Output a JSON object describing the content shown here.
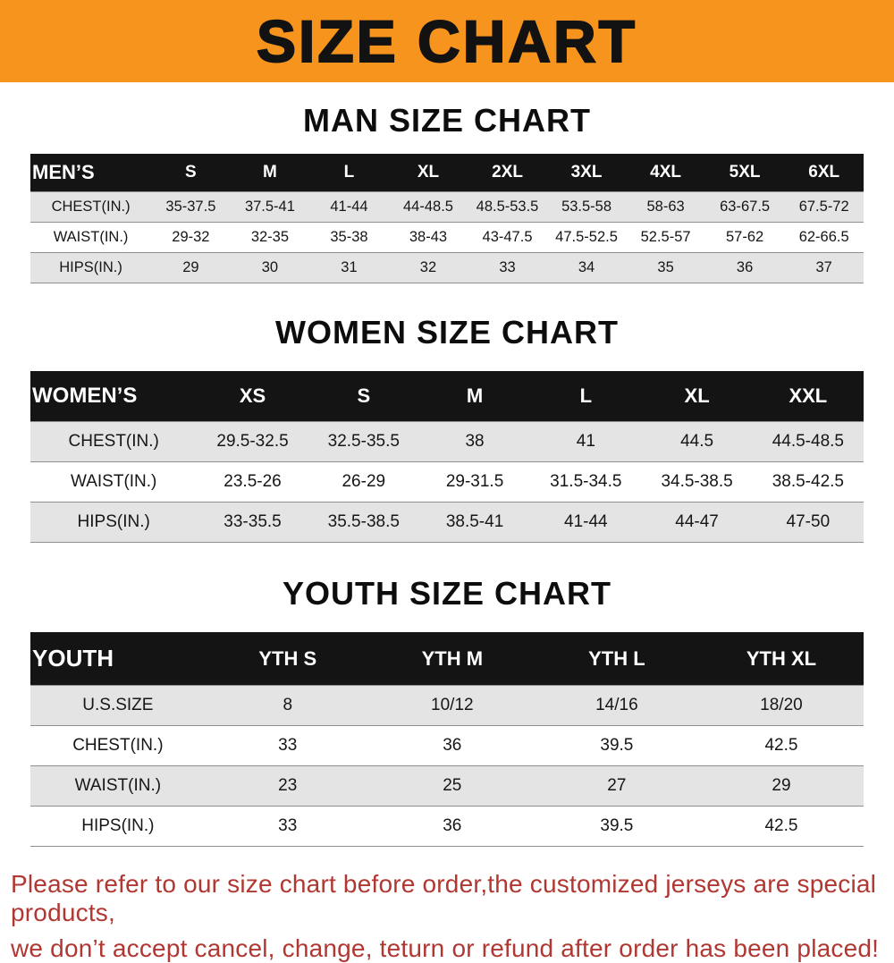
{
  "banner": {
    "title": "SIZE CHART"
  },
  "colors": {
    "banner_bg": "#f7941e",
    "table_header_bg": "#141414",
    "row_alt": "#e4e4e4",
    "footer_text": "#b13832"
  },
  "chart_data": [
    {
      "type": "table",
      "title": "MAN SIZE CHART",
      "header_label": "MEN’S",
      "columns": [
        "S",
        "M",
        "L",
        "XL",
        "2XL",
        "3XL",
        "4XL",
        "5XL",
        "6XL"
      ],
      "rows": [
        {
          "label": "CHEST(IN.)",
          "values": [
            "35-37.5",
            "37.5-41",
            "41-44",
            "44-48.5",
            "48.5-53.5",
            "53.5-58",
            "58-63",
            "63-67.5",
            "67.5-72"
          ]
        },
        {
          "label": "WAIST(IN.)",
          "values": [
            "29-32",
            "32-35",
            "35-38",
            "38-43",
            "43-47.5",
            "47.5-52.5",
            "52.5-57",
            "57-62",
            "62-66.5"
          ]
        },
        {
          "label": "HIPS(IN.)",
          "values": [
            "29",
            "30",
            "31",
            "32",
            "33",
            "34",
            "35",
            "36",
            "37"
          ]
        }
      ]
    },
    {
      "type": "table",
      "title": "WOMEN SIZE CHART",
      "header_label": "WOMEN’S",
      "columns": [
        "XS",
        "S",
        "M",
        "L",
        "XL",
        "XXL"
      ],
      "rows": [
        {
          "label": "CHEST(IN.)",
          "values": [
            "29.5-32.5",
            "32.5-35.5",
            "38",
            "41",
            "44.5",
            "44.5-48.5"
          ]
        },
        {
          "label": "WAIST(IN.)",
          "values": [
            "23.5-26",
            "26-29",
            "29-31.5",
            "31.5-34.5",
            "34.5-38.5",
            "38.5-42.5"
          ]
        },
        {
          "label": "HIPS(IN.)",
          "values": [
            "33-35.5",
            "35.5-38.5",
            "38.5-41",
            "41-44",
            "44-47",
            "47-50"
          ]
        }
      ]
    },
    {
      "type": "table",
      "title": "YOUTH SIZE CHART",
      "header_label": "YOUTH",
      "columns": [
        "YTH S",
        "YTH M",
        "YTH L",
        "YTH XL"
      ],
      "rows": [
        {
          "label": "U.S.SIZE",
          "values": [
            "8",
            "10/12",
            "14/16",
            "18/20"
          ]
        },
        {
          "label": "CHEST(IN.)",
          "values": [
            "33",
            "36",
            "39.5",
            "42.5"
          ]
        },
        {
          "label": "WAIST(IN.)",
          "values": [
            "23",
            "25",
            "27",
            "29"
          ]
        },
        {
          "label": "HIPS(IN.)",
          "values": [
            "33",
            "36",
            "39.5",
            "42.5"
          ]
        }
      ]
    }
  ],
  "footer": {
    "lines": [
      "Please refer to our size chart before order,the customized jerseys are special products,",
      "we don’t accept cancel, change, teturn or refund after order has been placed!"
    ]
  }
}
